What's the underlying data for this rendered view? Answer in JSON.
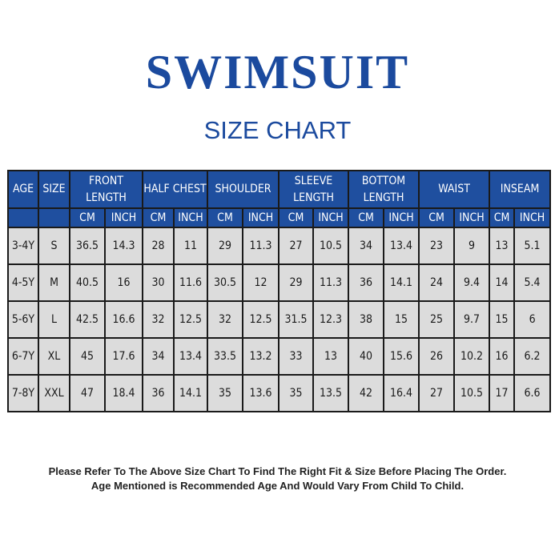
{
  "title": "SWIMSUIT",
  "subtitle": "SIZE CHART",
  "colors": {
    "brand_blue": "#1b4a9e",
    "header_bg": "#1f4f9f",
    "cell_bg": "#dcdcdc"
  },
  "table": {
    "groups": [
      {
        "label": "AGE"
      },
      {
        "label": "SIZE"
      },
      {
        "label": "FRONT LENGTH",
        "units": [
          "CM",
          "INCH"
        ]
      },
      {
        "label": "HALF CHEST",
        "units": [
          "CM",
          "INCH"
        ]
      },
      {
        "label": "SHOULDER",
        "units": [
          "CM",
          "INCH"
        ]
      },
      {
        "label": "SLEEVE LENGTH",
        "units": [
          "CM",
          "INCH"
        ]
      },
      {
        "label": "BOTTOM LENGTH",
        "units": [
          "CM",
          "INCH"
        ]
      },
      {
        "label": "WAIST",
        "units": [
          "CM",
          "INCH"
        ]
      },
      {
        "label": "INSEAM",
        "units": [
          "CM",
          "INCH"
        ]
      }
    ],
    "rows": [
      [
        "3-4Y",
        "S",
        "36.5",
        "14.3",
        "28",
        "11",
        "29",
        "11.3",
        "27",
        "10.5",
        "34",
        "13.4",
        "23",
        "9",
        "13",
        "5.1"
      ],
      [
        "4-5Y",
        "M",
        "40.5",
        "16",
        "30",
        "11.6",
        "30.5",
        "12",
        "29",
        "11.3",
        "36",
        "14.1",
        "24",
        "9.4",
        "14",
        "5.4"
      ],
      [
        "5-6Y",
        "L",
        "42.5",
        "16.6",
        "32",
        "12.5",
        "32",
        "12.5",
        "31.5",
        "12.3",
        "38",
        "15",
        "25",
        "9.7",
        "15",
        "6"
      ],
      [
        "6-7Y",
        "XL",
        "45",
        "17.6",
        "34",
        "13.4",
        "33.5",
        "13.2",
        "33",
        "13",
        "40",
        "15.6",
        "26",
        "10.2",
        "16",
        "6.2"
      ],
      [
        "7-8Y",
        "XXL",
        "47",
        "18.4",
        "36",
        "14.1",
        "35",
        "13.6",
        "35",
        "13.5",
        "42",
        "16.4",
        "27",
        "10.5",
        "17",
        "6.6"
      ]
    ]
  },
  "notes": [
    "Please Refer To The Above Size Chart To Find The Right Fit & Size Before Placing The Order.",
    "Age Mentioned is Recommended Age And Would Vary From Child To Child."
  ]
}
